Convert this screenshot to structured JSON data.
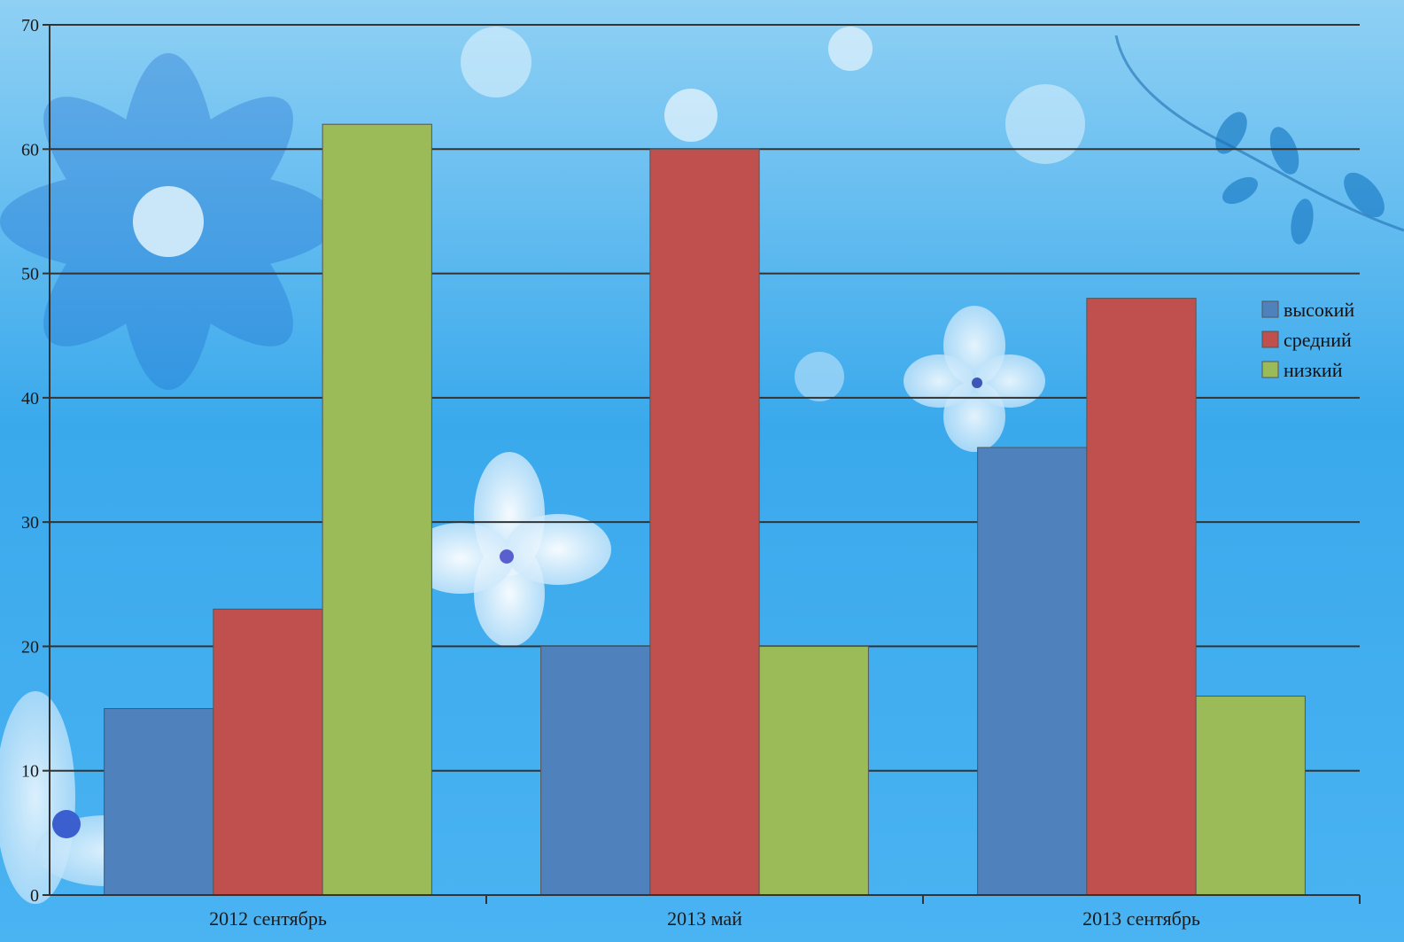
{
  "chart_data": {
    "type": "bar",
    "categories": [
      "2012 сентябрь",
      "2013 май",
      "2013 сентябрь"
    ],
    "series": [
      {
        "name": "высокий",
        "color": "#4f81bd",
        "values": [
          15,
          20,
          36
        ]
      },
      {
        "name": "средний",
        "color": "#c0504d",
        "values": [
          23,
          60,
          48
        ]
      },
      {
        "name": "низкий",
        "color": "#9bbb59",
        "values": [
          62,
          20,
          16
        ]
      }
    ],
    "ylim": [
      0,
      70
    ],
    "yticks": [
      0,
      10,
      20,
      30,
      40,
      50,
      60,
      70
    ],
    "grid": true,
    "legend_position": "right"
  }
}
